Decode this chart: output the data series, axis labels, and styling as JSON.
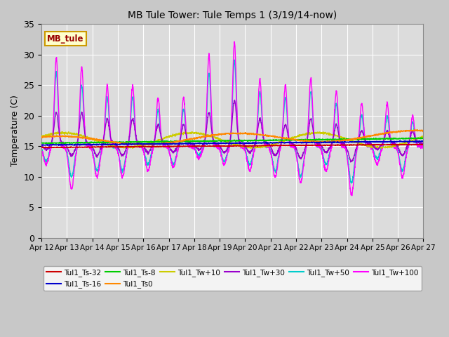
{
  "title": "MB Tule Tower: Tule Temps 1 (3/19/14-now)",
  "ylabel": "Temperature (C)",
  "ylim": [
    0,
    35
  ],
  "yticks": [
    0,
    5,
    10,
    15,
    20,
    25,
    30,
    35
  ],
  "xtick_labels": [
    "Apr 12",
    "Apr 13",
    "Apr 14",
    "Apr 15",
    "Apr 16",
    "Apr 17",
    "Apr 18",
    "Apr 19",
    "Apr 20",
    "Apr 21",
    "Apr 22",
    "Apr 23",
    "Apr 24",
    "Apr 25",
    "Apr 26",
    "Apr 27"
  ],
  "bg_color": "#dcdcdc",
  "plot_bg_color": "#dcdcdc",
  "series_colors": {
    "Tul1_Ts-32": "#cc0000",
    "Tul1_Ts-16": "#0000cc",
    "Tul1_Ts-8": "#00cc00",
    "Tul1_Ts0": "#ff8800",
    "Tul1_Tw+10": "#cccc00",
    "Tul1_Tw+30": "#9900cc",
    "Tul1_Tw+50": "#00cccc",
    "Tul1_Tw+100": "#ff00ff"
  },
  "legend_label": "MB_tule",
  "legend_bg": "#ffffcc",
  "legend_border": "#cc9900"
}
